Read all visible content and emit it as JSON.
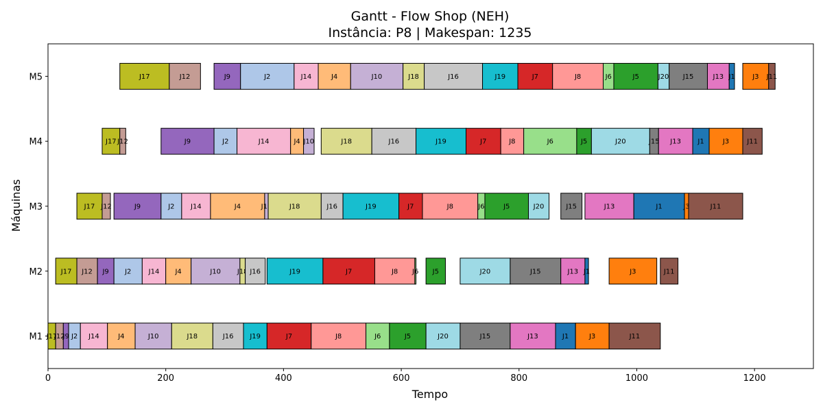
{
  "chart_data": {
    "type": "gantt",
    "title": "Gantt - Flow Shop (NEH)",
    "subtitle": "Instância: P8 | Makespan: 1235",
    "xlabel": "Tempo",
    "ylabel": "Máquinas",
    "xlim": [
      0,
      1300
    ],
    "xticks": [
      0,
      200,
      400,
      600,
      800,
      1000,
      1200
    ],
    "machines": [
      "M1",
      "M2",
      "M3",
      "M4",
      "M5"
    ],
    "job_colors": {
      "J1": "#1f77b4",
      "J2": "#aec7e8",
      "J3": "#ff7f0e",
      "J4": "#ffbb78",
      "J5": "#2ca02c",
      "J6": "#98df8a",
      "J7": "#d62728",
      "J8": "#ff9896",
      "J9": "#9467bd",
      "J10": "#c5b0d5",
      "J11": "#8c564b",
      "J12": "#c49c94",
      "J13": "#e377c2",
      "J14": "#f7b6d2",
      "J15": "#7f7f7f",
      "J16": "#c7c7c7",
      "J17": "#bcbd22",
      "J18": "#dbdb8d",
      "J19": "#17becf",
      "J20": "#9edae5"
    },
    "tasks": [
      {
        "machine": "M1",
        "job": "J17",
        "start": 0,
        "end": 13
      },
      {
        "machine": "M1",
        "job": "J12",
        "start": 13,
        "end": 26
      },
      {
        "machine": "M1",
        "job": "J9",
        "start": 26,
        "end": 35
      },
      {
        "machine": "M1",
        "job": "J2",
        "start": 35,
        "end": 55
      },
      {
        "machine": "M1",
        "job": "J14",
        "start": 55,
        "end": 101
      },
      {
        "machine": "M1",
        "job": "J4",
        "start": 101,
        "end": 148
      },
      {
        "machine": "M1",
        "job": "J10",
        "start": 148,
        "end": 210
      },
      {
        "machine": "M1",
        "job": "J18",
        "start": 210,
        "end": 280
      },
      {
        "machine": "M1",
        "job": "J16",
        "start": 280,
        "end": 332
      },
      {
        "machine": "M1",
        "job": "J19",
        "start": 332,
        "end": 372
      },
      {
        "machine": "M1",
        "job": "J7",
        "start": 372,
        "end": 447
      },
      {
        "machine": "M1",
        "job": "J8",
        "start": 447,
        "end": 540
      },
      {
        "machine": "M1",
        "job": "J6",
        "start": 540,
        "end": 580
      },
      {
        "machine": "M1",
        "job": "J5",
        "start": 580,
        "end": 642
      },
      {
        "machine": "M1",
        "job": "J20",
        "start": 642,
        "end": 700
      },
      {
        "machine": "M1",
        "job": "J15",
        "start": 700,
        "end": 785
      },
      {
        "machine": "M1",
        "job": "J13",
        "start": 785,
        "end": 862
      },
      {
        "machine": "M1",
        "job": "J1",
        "start": 862,
        "end": 896
      },
      {
        "machine": "M1",
        "job": "J3",
        "start": 896,
        "end": 953
      },
      {
        "machine": "M1",
        "job": "J11",
        "start": 953,
        "end": 1040
      },
      {
        "machine": "M2",
        "job": "J17",
        "start": 13,
        "end": 49
      },
      {
        "machine": "M2",
        "job": "J12",
        "start": 49,
        "end": 84
      },
      {
        "machine": "M2",
        "job": "J9",
        "start": 84,
        "end": 112
      },
      {
        "machine": "M2",
        "job": "J2",
        "start": 112,
        "end": 160
      },
      {
        "machine": "M2",
        "job": "J14",
        "start": 160,
        "end": 200
      },
      {
        "machine": "M2",
        "job": "J4",
        "start": 200,
        "end": 243
      },
      {
        "machine": "M2",
        "job": "J10",
        "start": 243,
        "end": 326
      },
      {
        "machine": "M2",
        "job": "J18",
        "start": 326,
        "end": 335
      },
      {
        "machine": "M2",
        "job": "J16",
        "start": 335,
        "end": 369
      },
      {
        "machine": "M2",
        "job": "J19",
        "start": 372,
        "end": 467
      },
      {
        "machine": "M2",
        "job": "J7",
        "start": 467,
        "end": 555
      },
      {
        "machine": "M2",
        "job": "J8",
        "start": 555,
        "end": 623
      },
      {
        "machine": "M2",
        "job": "J6",
        "start": 623,
        "end": 625
      },
      {
        "machine": "M2",
        "job": "J5",
        "start": 642,
        "end": 675
      },
      {
        "machine": "M2",
        "job": "J20",
        "start": 700,
        "end": 785
      },
      {
        "machine": "M2",
        "job": "J15",
        "start": 785,
        "end": 871
      },
      {
        "machine": "M2",
        "job": "J13",
        "start": 871,
        "end": 912
      },
      {
        "machine": "M2",
        "job": "J1",
        "start": 912,
        "end": 918
      },
      {
        "machine": "M2",
        "job": "J3",
        "start": 953,
        "end": 1034
      },
      {
        "machine": "M2",
        "job": "J11",
        "start": 1040,
        "end": 1070
      },
      {
        "machine": "M3",
        "job": "J17",
        "start": 49,
        "end": 92
      },
      {
        "machine": "M3",
        "job": "J12",
        "start": 92,
        "end": 106
      },
      {
        "machine": "M3",
        "job": "J9",
        "start": 112,
        "end": 192
      },
      {
        "machine": "M3",
        "job": "J2",
        "start": 192,
        "end": 227
      },
      {
        "machine": "M3",
        "job": "J14",
        "start": 227,
        "end": 276
      },
      {
        "machine": "M3",
        "job": "J4",
        "start": 276,
        "end": 368
      },
      {
        "machine": "M3",
        "job": "J10",
        "start": 368,
        "end": 374
      },
      {
        "machine": "M3",
        "job": "J18",
        "start": 374,
        "end": 464
      },
      {
        "machine": "M3",
        "job": "J16",
        "start": 464,
        "end": 501
      },
      {
        "machine": "M3",
        "job": "J19",
        "start": 501,
        "end": 596
      },
      {
        "machine": "M3",
        "job": "J7",
        "start": 596,
        "end": 636
      },
      {
        "machine": "M3",
        "job": "J8",
        "start": 636,
        "end": 730
      },
      {
        "machine": "M3",
        "job": "J6",
        "start": 730,
        "end": 742
      },
      {
        "machine": "M3",
        "job": "J5",
        "start": 742,
        "end": 816
      },
      {
        "machine": "M3",
        "job": "J20",
        "start": 816,
        "end": 851
      },
      {
        "machine": "M3",
        "job": "J15",
        "start": 871,
        "end": 907
      },
      {
        "machine": "M3",
        "job": "J13",
        "start": 912,
        "end": 995
      },
      {
        "machine": "M3",
        "job": "J1",
        "start": 995,
        "end": 1081
      },
      {
        "machine": "M3",
        "job": "J3",
        "start": 1081,
        "end": 1088
      },
      {
        "machine": "M3",
        "job": "J11",
        "start": 1088,
        "end": 1180
      },
      {
        "machine": "M4",
        "job": "J17",
        "start": 92,
        "end": 122
      },
      {
        "machine": "M4",
        "job": "J12",
        "start": 122,
        "end": 132
      },
      {
        "machine": "M4",
        "job": "J9",
        "start": 192,
        "end": 282
      },
      {
        "machine": "M4",
        "job": "J2",
        "start": 282,
        "end": 321
      },
      {
        "machine": "M4",
        "job": "J14",
        "start": 321,
        "end": 412
      },
      {
        "machine": "M4",
        "job": "J4",
        "start": 412,
        "end": 434
      },
      {
        "machine": "M4",
        "job": "J10",
        "start": 434,
        "end": 452
      },
      {
        "machine": "M4",
        "job": "J18",
        "start": 464,
        "end": 550
      },
      {
        "machine": "M4",
        "job": "J16",
        "start": 550,
        "end": 625
      },
      {
        "machine": "M4",
        "job": "J19",
        "start": 625,
        "end": 710
      },
      {
        "machine": "M4",
        "job": "J7",
        "start": 710,
        "end": 769
      },
      {
        "machine": "M4",
        "job": "J8",
        "start": 769,
        "end": 808
      },
      {
        "machine": "M4",
        "job": "J6",
        "start": 808,
        "end": 898
      },
      {
        "machine": "M4",
        "job": "J5",
        "start": 898,
        "end": 923
      },
      {
        "machine": "M4",
        "job": "J20",
        "start": 923,
        "end": 1022
      },
      {
        "machine": "M4",
        "job": "J15",
        "start": 1022,
        "end": 1037
      },
      {
        "machine": "M4",
        "job": "J13",
        "start": 1037,
        "end": 1095
      },
      {
        "machine": "M4",
        "job": "J1",
        "start": 1095,
        "end": 1123
      },
      {
        "machine": "M4",
        "job": "J3",
        "start": 1123,
        "end": 1180
      },
      {
        "machine": "M4",
        "job": "J11",
        "start": 1180,
        "end": 1213
      },
      {
        "machine": "M5",
        "job": "J17",
        "start": 122,
        "end": 206
      },
      {
        "machine": "M5",
        "job": "J12",
        "start": 206,
        "end": 259
      },
      {
        "machine": "M5",
        "job": "J9",
        "start": 282,
        "end": 327
      },
      {
        "machine": "M5",
        "job": "J2",
        "start": 327,
        "end": 418
      },
      {
        "machine": "M5",
        "job": "J14",
        "start": 418,
        "end": 459
      },
      {
        "machine": "M5",
        "job": "J4",
        "start": 459,
        "end": 514
      },
      {
        "machine": "M5",
        "job": "J10",
        "start": 514,
        "end": 603
      },
      {
        "machine": "M5",
        "job": "J18",
        "start": 603,
        "end": 639
      },
      {
        "machine": "M5",
        "job": "J16",
        "start": 639,
        "end": 738
      },
      {
        "machine": "M5",
        "job": "J19",
        "start": 738,
        "end": 798
      },
      {
        "machine": "M5",
        "job": "J7",
        "start": 798,
        "end": 857
      },
      {
        "machine": "M5",
        "job": "J8",
        "start": 857,
        "end": 943
      },
      {
        "machine": "M5",
        "job": "J6",
        "start": 943,
        "end": 961
      },
      {
        "machine": "M5",
        "job": "J5",
        "start": 961,
        "end": 1036
      },
      {
        "machine": "M5",
        "job": "J20",
        "start": 1036,
        "end": 1055
      },
      {
        "machine": "M5",
        "job": "J15",
        "start": 1055,
        "end": 1120
      },
      {
        "machine": "M5",
        "job": "J13",
        "start": 1120,
        "end": 1157
      },
      {
        "machine": "M5",
        "job": "J1",
        "start": 1157,
        "end": 1166
      },
      {
        "machine": "M5",
        "job": "J3",
        "start": 1180,
        "end": 1224
      },
      {
        "machine": "M5",
        "job": "J11",
        "start": 1224,
        "end": 1235
      }
    ]
  }
}
